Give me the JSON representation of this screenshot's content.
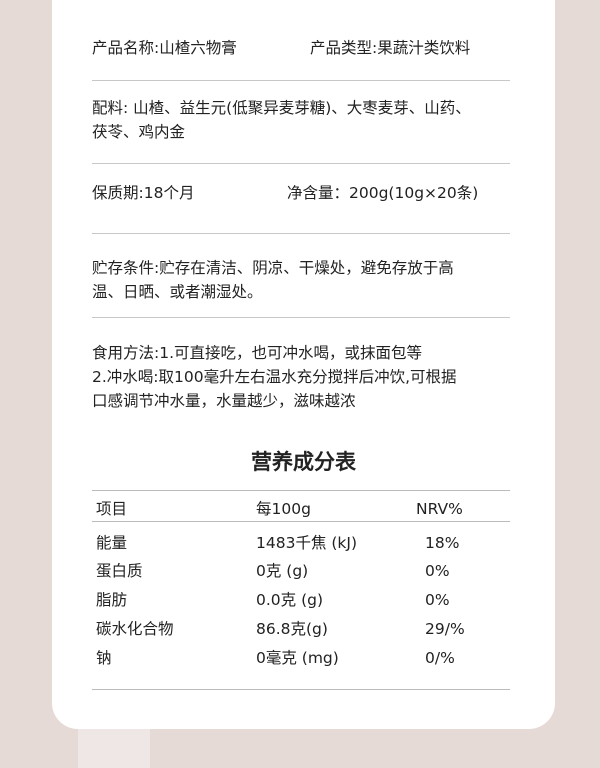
{
  "info": {
    "product_name": "产品名称:山楂六物膏",
    "product_type": "产品类型:果蔬汁类饮料",
    "ingredients": [
      "配料: 山楂、益生元(低聚异麦芽糖)、大枣麦芽、山药、",
      "茯苓、鸡内金"
    ],
    "shelf_life": "保质期:18个月",
    "net_content": "净含量：200g(10g×20条)",
    "storage": [
      "贮存条件:贮存在清洁、阴凉、干燥处，避免存放于高",
      "温、日晒、或者潮湿处。"
    ],
    "usage": [
      "食用方法:1.可直接吃，也可冲水喝，或抹面包等",
      "2.冲水喝:取100毫升左右温水充分搅拌后冲饮,可根据",
      "口感调节冲水量，水量越少，滋味越浓"
    ]
  },
  "nutrition": {
    "title": "营养成分表",
    "headers": [
      "项目",
      "每100g",
      "NRV%"
    ],
    "rows": [
      [
        "能量",
        "1483千焦 (kJ)",
        "18%"
      ],
      [
        "蛋白质",
        "0克 (g)",
        "0%"
      ],
      [
        "脂肪",
        "0.0克 (g)",
        "0%"
      ],
      [
        "碳水化合物",
        "86.8克(g)",
        "29/%"
      ],
      [
        "钠",
        "0毫克 (mg)",
        "0/%"
      ]
    ]
  }
}
